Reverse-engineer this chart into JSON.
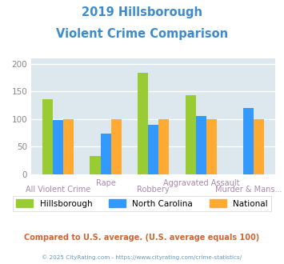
{
  "title_line1": "2019 Hillsborough",
  "title_line2": "Violent Crime Comparison",
  "title_color": "#3d8bcd",
  "categories": [
    "All Violent Crime",
    "Rape",
    "Robbery",
    "Aggravated Assault",
    "Murder & Mans..."
  ],
  "hillsborough": [
    136,
    33,
    184,
    143,
    0
  ],
  "north_carolina": [
    98,
    73,
    90,
    105,
    120
  ],
  "national": [
    100,
    100,
    100,
    100,
    100
  ],
  "colors": {
    "hillsborough": "#99cc33",
    "north_carolina": "#3399ff",
    "national": "#ffaa33"
  },
  "ylim": [
    0,
    210
  ],
  "yticks": [
    0,
    50,
    100,
    150,
    200
  ],
  "bg_color": "#dce8ed",
  "caption": "Compared to U.S. average. (U.S. average equals 100)",
  "caption_color": "#cc6633",
  "footer": "© 2025 CityRating.com - https://www.cityrating.com/crime-statistics/",
  "footer_color": "#6699bb",
  "legend_labels": [
    "Hillsborough",
    "North Carolina",
    "National"
  ],
  "bar_width": 0.22,
  "xlabel_fontsize": 7.0,
  "ylabel_fontsize": 7.5,
  "title_fontsize": 10.5
}
